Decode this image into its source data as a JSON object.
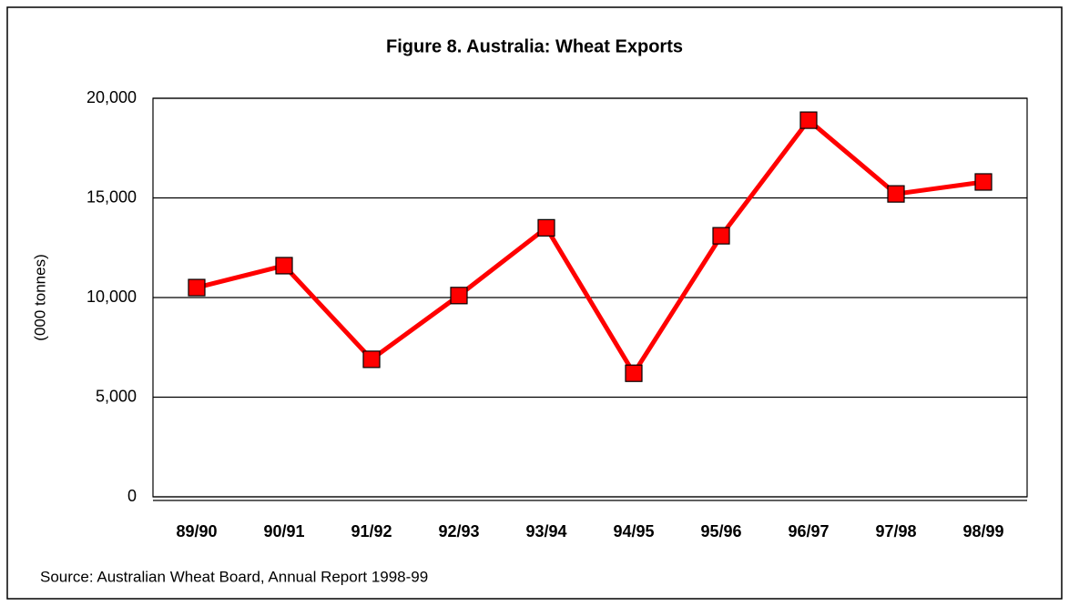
{
  "chart_data": {
    "type": "line",
    "title": "Figure 8.  Australia: Wheat Exports",
    "y_label": "(000 tonnes)",
    "source": "Source: Australian Wheat Board, Annual Report 1998-99",
    "categories": [
      "89/90",
      "90/91",
      "91/92",
      "92/93",
      "93/94",
      "94/95",
      "95/96",
      "96/97",
      "97/98",
      "98/99"
    ],
    "series": [
      {
        "color": "#ff0000",
        "values": [
          10500,
          11600,
          6900,
          10100,
          13500,
          6200,
          13100,
          18900,
          15200,
          15800
        ]
      }
    ],
    "ylim": [
      0,
      20000
    ],
    "yticks": [
      {
        "value": 0,
        "label": "0"
      },
      {
        "value": 5000,
        "label": "5,000"
      },
      {
        "value": 10000,
        "label": "10,000"
      },
      {
        "value": 15000,
        "label": "15,000"
      },
      {
        "value": 20000,
        "label": "20,000"
      }
    ],
    "grid": true
  }
}
